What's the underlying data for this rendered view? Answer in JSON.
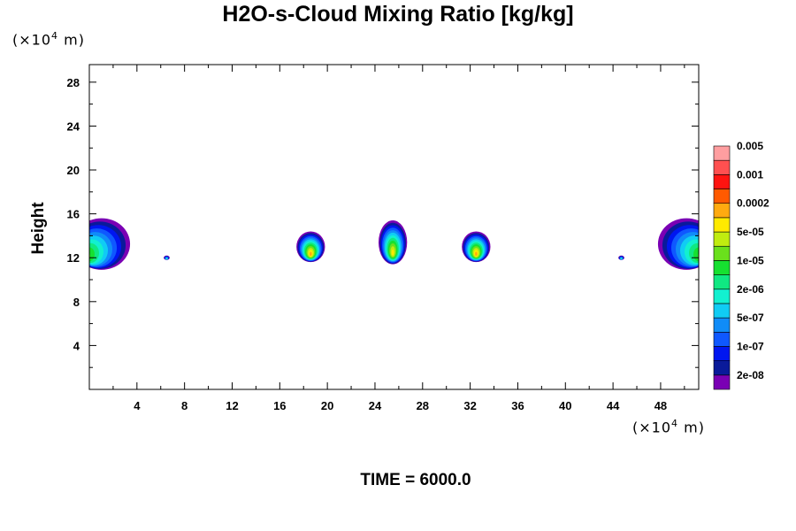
{
  "header": {
    "title": "H2O-s-Cloud Mixing Ratio [kg/kg]",
    "y_unit_prefix": "(×10",
    "y_unit_exp": "4",
    "y_unit_suffix": " m)",
    "x_unit_prefix": "(×10",
    "x_unit_exp": "4",
    "x_unit_suffix": " m)"
  },
  "footer": {
    "time_label": "TIME = 6000.0"
  },
  "chart_data": {
    "type": "heatmap",
    "title": "H2O-s-Cloud Mixing Ratio [kg/kg]",
    "xlabel": "",
    "ylabel": "Height",
    "x_unit": "(×10^4 m)",
    "y_unit": "(×10^4 m)",
    "xlim": [
      0,
      51.2
    ],
    "ylim": [
      0,
      29.6
    ],
    "x_ticks": [
      4,
      8,
      12,
      16,
      20,
      24,
      28,
      32,
      36,
      40,
      44,
      48
    ],
    "y_ticks": [
      4,
      8,
      12,
      16,
      20,
      24,
      28
    ],
    "colorbar": {
      "colors": [
        "#7a00b4",
        "#0a1a9a",
        "#0016f0",
        "#0f58ff",
        "#108cf8",
        "#10ccf4",
        "#12f0d0",
        "#10e882",
        "#16e030",
        "#6ae01c",
        "#c0ec10",
        "#ffea00",
        "#ffaa10",
        "#ff5a00",
        "#ff1410",
        "#ff5050",
        "#ff9ea0"
      ],
      "labels": [
        "2e-08",
        "1e-07",
        "5e-07",
        "2e-06",
        "1e-05",
        "5e-05",
        "0.0002",
        "0.001",
        "0.005"
      ]
    },
    "cloud_features": [
      {
        "x_center": 0.9,
        "z_base": 10.9,
        "z_top": 15.6,
        "half_width": 2.4,
        "peak_level": 9,
        "edge": "left"
      },
      {
        "x_center": 50.3,
        "z_base": 10.9,
        "z_top": 15.6,
        "half_width": 2.4,
        "peak_level": 9,
        "edge": "right"
      },
      {
        "x_center": 18.6,
        "z_base": 11.6,
        "z_top": 14.4,
        "half_width": 1.2,
        "peak_level": 12
      },
      {
        "x_center": 25.5,
        "z_base": 11.4,
        "z_top": 15.4,
        "half_width": 1.2,
        "peak_level": 11
      },
      {
        "x_center": 32.5,
        "z_base": 11.6,
        "z_top": 14.4,
        "half_width": 1.2,
        "peak_level": 12
      },
      {
        "x_center": 6.5,
        "z_base": 11.8,
        "z_top": 12.2,
        "half_width": 0.25,
        "peak_level": 6
      },
      {
        "x_center": 44.7,
        "z_base": 11.8,
        "z_top": 12.2,
        "half_width": 0.25,
        "peak_level": 6
      }
    ]
  }
}
